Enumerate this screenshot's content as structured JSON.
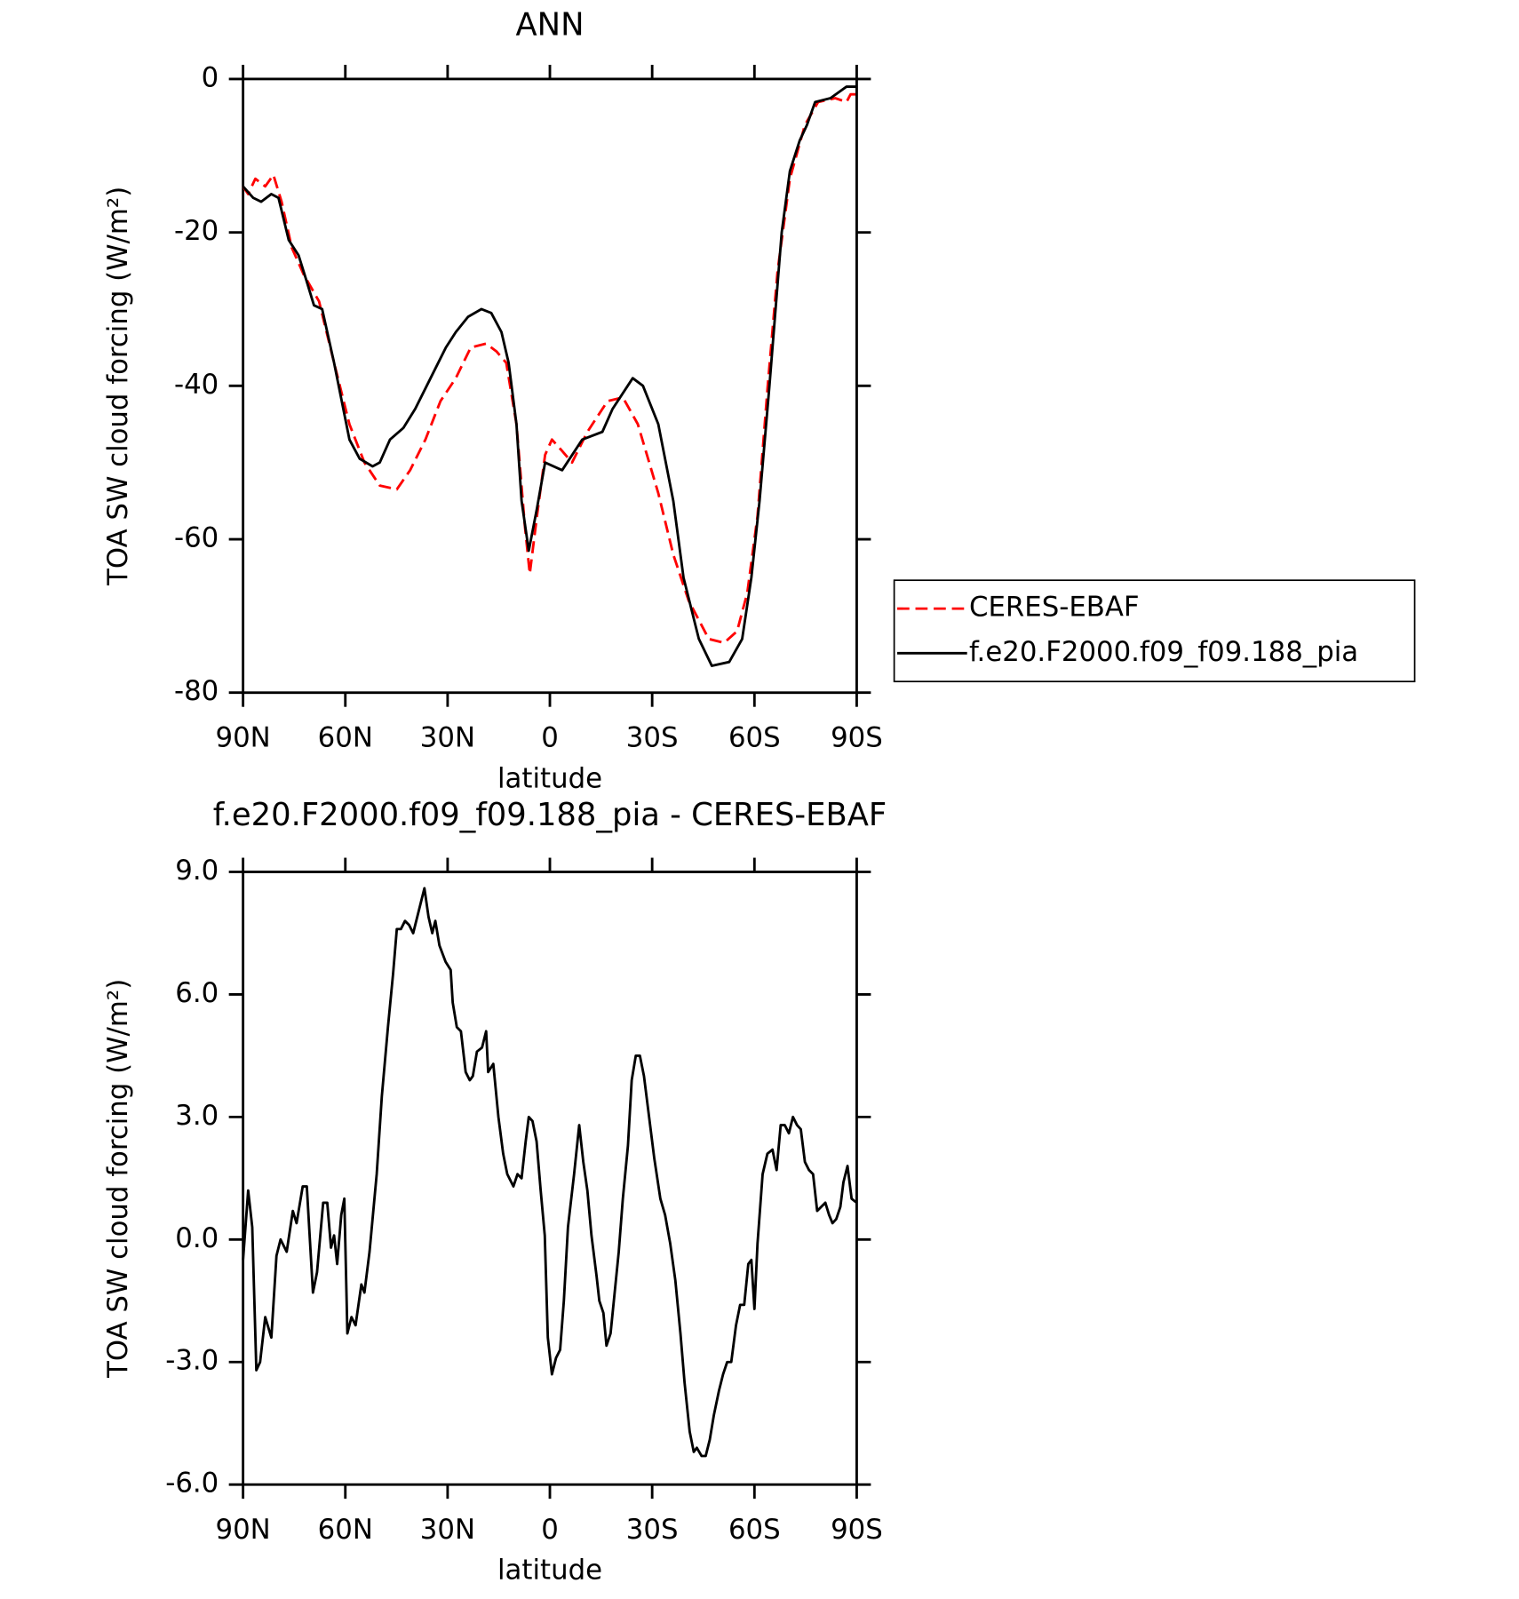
{
  "chart_data": [
    {
      "type": "line",
      "title": "ANN",
      "xlabel": "latitude",
      "ylabel": "TOA SW cloud forcing (W/m²)",
      "xlim": [
        90,
        -90
      ],
      "xticks": [
        {
          "value": 90,
          "label": "90N"
        },
        {
          "value": 60,
          "label": "60N"
        },
        {
          "value": 30,
          "label": "30N"
        },
        0,
        {
          "value": -30,
          "label": "30S"
        },
        {
          "value": -60,
          "label": "60S"
        },
        {
          "value": -90,
          "label": "90S"
        }
      ],
      "ylim": [
        -80,
        0
      ],
      "yticks": [
        -80,
        -60,
        -40,
        -20,
        0
      ],
      "legend": "outside-right",
      "series": [
        {
          "name": "CERES-EBAF",
          "color": "#ff0000",
          "dash": true,
          "x": [
            90,
            88.5,
            86.4,
            83.5,
            81.1,
            78.7,
            75.7,
            72.2,
            67.7,
            63.3,
            58.8,
            54.4,
            49.9,
            44.9,
            41.0,
            36.5,
            32.1,
            27.6,
            23.2,
            18.7,
            15.7,
            12.8,
            9.8,
            7.4,
            5.9,
            3.8,
            1.4,
            -0.6,
            -3.6,
            -6.5,
            -11.0,
            -16.9,
            -21.4,
            -25.8,
            -31.8,
            -36.2,
            -40.7,
            -46.6,
            -51.1,
            -54.9,
            -57.9,
            -60.9,
            -63.9,
            -66.8,
            -70.4,
            -74.8,
            -78.7,
            -83.7,
            -87.0,
            -88.2,
            -90
          ],
          "values": [
            -14,
            -15,
            -13,
            -14,
            -12.5,
            -16,
            -22,
            -25.5,
            -29,
            -37,
            -45,
            -50,
            -53,
            -53.5,
            -51,
            -47,
            -42,
            -39,
            -35,
            -34.5,
            -35.5,
            -37,
            -45,
            -58,
            -64.5,
            -57,
            -49,
            -47,
            -48.5,
            -50,
            -46,
            -42,
            -41.5,
            -45,
            -54,
            -62,
            -68,
            -73,
            -73.5,
            -72,
            -67,
            -57,
            -40,
            -25,
            -13,
            -6,
            -3,
            -2.5,
            -3,
            -2,
            -2
          ]
        },
        {
          "name": "f.e20.F2000.f09_f09.188_pia",
          "color": "#000000",
          "dash": false,
          "x": [
            90,
            87.0,
            84.7,
            81.7,
            79.6,
            76.6,
            73.7,
            71.6,
            69.2,
            66.8,
            63.3,
            58.8,
            55.8,
            52.0,
            49.9,
            46.9,
            43.0,
            39.5,
            35.0,
            30.5,
            27.6,
            24.0,
            20.1,
            17.2,
            14.2,
            12.1,
            9.8,
            8.3,
            6.2,
            3.8,
            1.4,
            -3.6,
            -9.5,
            -15.4,
            -18.4,
            -24.3,
            -27.3,
            -31.8,
            -36.2,
            -39.2,
            -43.7,
            -47.5,
            -52.6,
            -56.4,
            -59.1,
            -61.5,
            -64.4,
            -68.0,
            -70.4,
            -73.3,
            -75.4,
            -77.8,
            -82.3,
            -87.0,
            -90
          ],
          "values": [
            -14,
            -15.5,
            -16,
            -15,
            -15.5,
            -21,
            -23,
            -26,
            -29.5,
            -30,
            -37,
            -47,
            -49.5,
            -50.5,
            -50,
            -47,
            -45.5,
            -43,
            -39,
            -35,
            -33,
            -31,
            -30,
            -30.5,
            -33,
            -37,
            -45,
            -55,
            -61.5,
            -56,
            -50,
            -51,
            -47,
            -46,
            -43,
            -39,
            -40,
            -45,
            -55,
            -65,
            -73,
            -76.5,
            -76,
            -73,
            -65,
            -55,
            -40,
            -20,
            -12,
            -8,
            -6,
            -3,
            -2.5,
            -1,
            -1
          ]
        }
      ]
    },
    {
      "type": "line",
      "title": "f.e20.F2000.f09_f09.188_pia - CERES-EBAF",
      "xlabel": "latitude",
      "ylabel": "TOA SW cloud forcing (W/m²)",
      "xlim": [
        90,
        -90
      ],
      "xticks": [
        {
          "value": 90,
          "label": "90N"
        },
        {
          "value": 60,
          "label": "60N"
        },
        {
          "value": 30,
          "label": "30N"
        },
        0,
        {
          "value": -30,
          "label": "30S"
        },
        {
          "value": -60,
          "label": "60S"
        },
        {
          "value": -90,
          "label": "90S"
        }
      ],
      "ylim": [
        -6,
        9
      ],
      "yticks": [
        {
          "value": -6,
          "label": "-6.0"
        },
        {
          "value": -3,
          "label": "-3.0"
        },
        {
          "value": 0,
          "label": "0.0"
        },
        {
          "value": 3,
          "label": "3.0"
        },
        {
          "value": 6,
          "label": "6.0"
        },
        {
          "value": 9,
          "label": "9.0"
        }
      ],
      "series": [
        {
          "color": "#000000",
          "dash": false,
          "x": [
            90,
            88.5,
            87.3,
            86.1,
            85.0,
            83.5,
            81.7,
            80.2,
            79.0,
            77.2,
            75.4,
            74.3,
            72.5,
            71.3,
            69.5,
            68.3,
            66.5,
            65.3,
            64.2,
            63.3,
            62.4,
            61.2,
            60.3,
            59.4,
            58.2,
            57.0,
            55.3,
            54.4,
            52.9,
            50.8,
            49.3,
            47.5,
            46.0,
            44.9,
            43.7,
            42.5,
            41.3,
            40.1,
            38.6,
            36.8,
            35.6,
            34.5,
            33.6,
            32.4,
            30.6,
            29.1,
            28.5,
            27.3,
            26.1,
            24.7,
            23.5,
            22.6,
            21.4,
            19.9,
            18.7,
            18.1,
            16.6,
            15.1,
            13.7,
            12.5,
            10.7,
            9.5,
            8.3,
            7.1,
            6.2,
            5.1,
            3.9,
            2.7,
            1.5,
            0.6,
            -0.6,
            -1.8,
            -3.0,
            -4.1,
            -5.3,
            -7.1,
            -8.6,
            -9.8,
            -11.0,
            -12.2,
            -13.7,
            -14.5,
            -15.7,
            -16.6,
            -17.8,
            -19.0,
            -20.2,
            -21.4,
            -22.9,
            -24.0,
            -25.2,
            -26.4,
            -27.6,
            -28.8,
            -30.6,
            -32.4,
            -33.8,
            -35.3,
            -36.8,
            -38.3,
            -39.5,
            -41.0,
            -42.2,
            -43.1,
            -44.5,
            -45.7,
            -46.9,
            -48.1,
            -49.6,
            -50.8,
            -52.0,
            -53.2,
            -54.6,
            -55.8,
            -57.0,
            -58.2,
            -59.1,
            -60.0,
            -60.9,
            -62.4,
            -63.8,
            -65.3,
            -66.5,
            -67.7,
            -68.9,
            -70.1,
            -71.3,
            -72.5,
            -73.6,
            -74.8,
            -76.0,
            -77.2,
            -78.4,
            -79.6,
            -80.8,
            -81.9,
            -82.9,
            -84.0,
            -85.2,
            -86.1,
            -87.3,
            -88.5,
            -90
          ],
          "values": [
            -0.5,
            1.2,
            0.3,
            -3.2,
            -3.0,
            -1.9,
            -2.4,
            -0.4,
            0,
            -0.3,
            0.7,
            0.4,
            1.3,
            1.3,
            -1.3,
            -0.8,
            0.9,
            0.9,
            -0.2,
            0.1,
            -0.6,
            0.6,
            1.0,
            -2.3,
            -1.9,
            -2.1,
            -1.1,
            -1.3,
            -0.3,
            1.6,
            3.5,
            5.2,
            6.5,
            7.6,
            7.6,
            7.8,
            7.7,
            7.5,
            8.0,
            8.6,
            7.9,
            7.5,
            7.8,
            7.2,
            6.8,
            6.6,
            5.8,
            5.2,
            5.1,
            4.1,
            3.9,
            4.0,
            4.6,
            4.7,
            5.1,
            4.1,
            4.3,
            3.0,
            2.1,
            1.6,
            1.3,
            1.6,
            1.5,
            2.4,
            3.0,
            2.9,
            2.4,
            1.2,
            0.1,
            -2.4,
            -3.3,
            -2.9,
            -2.7,
            -1.5,
            0.3,
            1.6,
            2.8,
            1.9,
            1.2,
            0.1,
            -0.9,
            -1.5,
            -1.8,
            -2.6,
            -2.3,
            -1.3,
            -0.3,
            1.0,
            2.3,
            3.9,
            4.5,
            4.5,
            4.0,
            3.2,
            2.0,
            1.0,
            0.6,
            -0.1,
            -1.0,
            -2.3,
            -3.5,
            -4.7,
            -5.2,
            -5.1,
            -5.3,
            -5.3,
            -4.9,
            -4.3,
            -3.7,
            -3.3,
            -3.0,
            -3.0,
            -2.1,
            -1.6,
            -1.6,
            -0.6,
            -0.5,
            -1.7,
            -0.1,
            1.6,
            2.1,
            2.2,
            1.7,
            2.8,
            2.8,
            2.6,
            3.0,
            2.8,
            2.7,
            1.9,
            1.7,
            1.6,
            0.7,
            0.8,
            0.9,
            0.6,
            0.4,
            0.5,
            0.8,
            1.4,
            1.8,
            1.0,
            0.9
          ]
        }
      ]
    }
  ]
}
